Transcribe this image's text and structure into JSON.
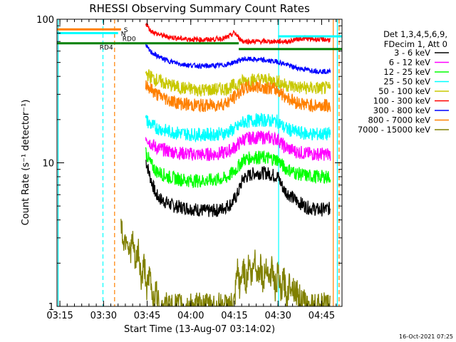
{
  "chart_data": {
    "type": "line",
    "title": "RHESSI Observing Summary Count Rates",
    "xlabel": "Start Time (13-Aug-07 03:14:02)",
    "ylabel": "Count Rate (s⁻¹ detector⁻¹)",
    "y_scale": "log",
    "ylim": [
      1,
      100
    ],
    "xlim_minutes": [
      194,
      292
    ],
    "x_ticks": [
      {
        "min": 195,
        "label": "03:15"
      },
      {
        "min": 210,
        "label": "03:30"
      },
      {
        "min": 225,
        "label": "03:45"
      },
      {
        "min": 240,
        "label": "04:00"
      },
      {
        "min": 255,
        "label": "04:15"
      },
      {
        "min": 270,
        "label": "04:30"
      },
      {
        "min": 285,
        "label": "04:45"
      }
    ],
    "y_ticks": [
      {
        "v": 1,
        "label": "1"
      },
      {
        "v": 10,
        "label": "10"
      },
      {
        "v": 100,
        "label": "100"
      }
    ],
    "legend_title": [
      "Det 1,3,4,5,6,9,",
      "FDecim 1, Att 0"
    ],
    "series": [
      {
        "name": "3 - 6 keV",
        "color": "#000000",
        "points": [
          [
            224.5,
            10.5
          ],
          [
            226,
            8.0
          ],
          [
            228,
            6.0
          ],
          [
            230,
            5.5
          ],
          [
            234,
            5.0
          ],
          [
            240,
            4.8
          ],
          [
            246,
            4.6
          ],
          [
            250,
            4.7
          ],
          [
            254,
            5.2
          ],
          [
            256,
            6.0
          ],
          [
            258,
            7.8
          ],
          [
            262,
            8.5
          ],
          [
            266,
            8.5
          ],
          [
            270,
            8.0
          ],
          [
            272,
            6.5
          ],
          [
            276,
            5.5
          ],
          [
            280,
            4.9
          ],
          [
            284,
            4.7
          ],
          [
            288,
            4.8
          ]
        ]
      },
      {
        "name": "6 - 12 keV",
        "color": "#ff00ff",
        "points": [
          [
            224.5,
            15.5
          ],
          [
            226,
            13.8
          ],
          [
            228,
            12.8
          ],
          [
            232,
            12.1
          ],
          [
            236,
            11.7
          ],
          [
            240,
            11.5
          ],
          [
            244,
            11.4
          ],
          [
            248,
            11.5
          ],
          [
            252,
            11.8
          ],
          [
            254,
            12.4
          ],
          [
            256,
            13.2
          ],
          [
            258,
            14.6
          ],
          [
            262,
            15.0
          ],
          [
            266,
            15.0
          ],
          [
            270,
            14.6
          ],
          [
            272,
            13.0
          ],
          [
            276,
            12.0
          ],
          [
            280,
            11.6
          ],
          [
            284,
            11.5
          ],
          [
            288,
            11.5
          ]
        ]
      },
      {
        "name": "12 - 25 keV",
        "color": "#00ff00",
        "points": [
          [
            224.5,
            12.0
          ],
          [
            226,
            10.0
          ],
          [
            228,
            8.8
          ],
          [
            232,
            8.0
          ],
          [
            236,
            7.7
          ],
          [
            240,
            7.5
          ],
          [
            244,
            7.5
          ],
          [
            248,
            7.6
          ],
          [
            252,
            7.8
          ],
          [
            254,
            8.4
          ],
          [
            256,
            9.2
          ],
          [
            258,
            10.5
          ],
          [
            262,
            11.0
          ],
          [
            266,
            10.8
          ],
          [
            270,
            10.5
          ],
          [
            272,
            9.3
          ],
          [
            276,
            8.5
          ],
          [
            280,
            8.1
          ],
          [
            284,
            8.0
          ],
          [
            288,
            8.0
          ]
        ]
      },
      {
        "name": "25 - 50 keV",
        "color": "#00ffff",
        "points": [
          [
            224.5,
            20.0
          ],
          [
            226,
            18.6
          ],
          [
            228,
            17.6
          ],
          [
            232,
            16.6
          ],
          [
            236,
            16.1
          ],
          [
            240,
            15.8
          ],
          [
            244,
            15.7
          ],
          [
            248,
            15.8
          ],
          [
            252,
            16.1
          ],
          [
            254,
            16.8
          ],
          [
            256,
            17.6
          ],
          [
            258,
            19.2
          ],
          [
            262,
            19.8
          ],
          [
            266,
            19.8
          ],
          [
            270,
            19.4
          ],
          [
            272,
            17.6
          ],
          [
            276,
            16.4
          ],
          [
            280,
            15.9
          ],
          [
            284,
            15.8
          ],
          [
            288,
            15.8
          ]
        ]
      },
      {
        "name": "50 - 100 keV",
        "color": "#c8c800",
        "points": [
          [
            224.5,
            42.0
          ],
          [
            226,
            40.0
          ],
          [
            228,
            38.0
          ],
          [
            232,
            35.2
          ],
          [
            236,
            33.4
          ],
          [
            240,
            32.6
          ],
          [
            244,
            32.2
          ],
          [
            248,
            32.3
          ],
          [
            252,
            32.9
          ],
          [
            254,
            34.0
          ],
          [
            256,
            35.2
          ],
          [
            258,
            37.2
          ],
          [
            262,
            38.0
          ],
          [
            266,
            37.8
          ],
          [
            270,
            37.0
          ],
          [
            272,
            35.0
          ],
          [
            276,
            33.8
          ],
          [
            280,
            33.2
          ],
          [
            284,
            33.0
          ],
          [
            288,
            33.0
          ]
        ]
      },
      {
        "name": "100 - 300 keV",
        "color": "#ff0000",
        "points": [
          [
            224.5,
            94.0
          ],
          [
            226,
            84.0
          ],
          [
            228,
            79.5
          ],
          [
            232,
            75.5
          ],
          [
            236,
            73.5
          ],
          [
            240,
            72.5
          ],
          [
            244,
            72.0
          ],
          [
            248,
            72.5
          ],
          [
            252,
            74.0
          ],
          [
            254,
            77.5
          ],
          [
            255,
            81.0
          ],
          [
            256,
            76.0
          ],
          [
            258,
            70.0
          ],
          [
            262,
            70.0
          ],
          [
            266,
            70.0
          ],
          [
            270,
            70.0
          ],
          [
            272,
            70.0
          ],
          [
            274,
            70.0
          ],
          [
            276,
            72.5
          ],
          [
            278,
            73.5
          ],
          [
            280,
            73.0
          ],
          [
            284,
            72.5
          ],
          [
            288,
            72.0
          ]
        ]
      },
      {
        "name": "300 - 800 keV",
        "color": "#0000ff",
        "points": [
          [
            224.5,
            65.0
          ],
          [
            226,
            60.0
          ],
          [
            228,
            56.0
          ],
          [
            232,
            51.5
          ],
          [
            236,
            49.0
          ],
          [
            240,
            47.7
          ],
          [
            244,
            47.2
          ],
          [
            248,
            47.4
          ],
          [
            252,
            48.2
          ],
          [
            254,
            49.6
          ],
          [
            256,
            51.0
          ],
          [
            258,
            52.8
          ],
          [
            262,
            52.5
          ],
          [
            266,
            51.5
          ],
          [
            270,
            50.5
          ],
          [
            272,
            49.0
          ],
          [
            276,
            46.0
          ],
          [
            280,
            44.5
          ],
          [
            284,
            43.5
          ],
          [
            288,
            43.0
          ]
        ]
      },
      {
        "name": "800 - 7000 keV",
        "color": "#ff8000",
        "points": [
          [
            224.5,
            36.0
          ],
          [
            226,
            33.0
          ],
          [
            228,
            30.2
          ],
          [
            232,
            27.6
          ],
          [
            236,
            26.0
          ],
          [
            240,
            25.3
          ],
          [
            244,
            25.0
          ],
          [
            248,
            25.2
          ],
          [
            252,
            26.0
          ],
          [
            254,
            27.5
          ],
          [
            256,
            30.0
          ],
          [
            258,
            32.8
          ],
          [
            262,
            34.0
          ],
          [
            266,
            33.6
          ],
          [
            270,
            32.0
          ],
          [
            272,
            29.5
          ],
          [
            276,
            26.5
          ],
          [
            280,
            25.3
          ],
          [
            284,
            25.0
          ],
          [
            288,
            25.0
          ]
        ]
      },
      {
        "name": "7000 - 15000 keV",
        "color": "#808000",
        "points": [
          [
            216,
            3.7
          ],
          [
            217,
            2.8
          ],
          [
            218,
            3.2
          ],
          [
            219,
            2.3
          ],
          [
            220,
            2.9
          ],
          [
            221,
            1.9
          ],
          [
            222,
            2.5
          ],
          [
            223,
            1.5
          ],
          [
            224,
            2.0
          ],
          [
            225,
            1.3
          ],
          [
            226,
            1.7
          ],
          [
            227,
            1.1
          ],
          [
            228,
            1.3
          ],
          [
            229,
            1.0
          ],
          [
            230,
            1.0
          ],
          [
            250,
            1.0
          ],
          [
            255,
            1.0
          ],
          [
            256,
            1.8
          ],
          [
            257,
            1.3
          ],
          [
            258,
            2.0
          ],
          [
            259,
            1.4
          ],
          [
            260,
            2.1
          ],
          [
            261,
            1.5
          ],
          [
            262,
            2.3
          ],
          [
            263,
            1.6
          ],
          [
            264,
            2.0
          ],
          [
            265,
            1.4
          ],
          [
            266,
            2.1
          ],
          [
            267,
            1.5
          ],
          [
            268,
            1.9
          ],
          [
            269,
            1.3
          ],
          [
            270,
            1.7
          ],
          [
            271,
            1.2
          ],
          [
            272,
            1.6
          ],
          [
            273,
            1.1
          ],
          [
            274,
            1.5
          ],
          [
            276,
            1.3
          ],
          [
            278,
            1.1
          ],
          [
            280,
            1.0
          ],
          [
            288,
            1.0
          ]
        ]
      }
    ],
    "flags": [
      {
        "label": "S",
        "color": "#ff8000",
        "x": [
          194,
          216
        ],
        "y": 85
      },
      {
        "label": "N",
        "color": "#00ffff",
        "x": [
          194,
          215
        ],
        "y": 80
      },
      {
        "label": "N",
        "color": "#00ffff",
        "x": [
          270,
          292
        ],
        "y": 76
      },
      {
        "label": "RD4",
        "color": "#008000",
        "x": [
          194,
          216
        ],
        "y": 68
      },
      {
        "label": "RD0",
        "color": "#008000",
        "x": [
          216,
          256.5
        ],
        "y": 68
      },
      {
        "label": "",
        "color": "#008000",
        "x": [
          256.5,
          292
        ],
        "y": 62
      }
    ],
    "vlines": [
      {
        "x": 194.4,
        "color": "#00ffff",
        "dash": false
      },
      {
        "x": 209.8,
        "color": "#00ffff",
        "dash": true
      },
      {
        "x": 213.8,
        "color": "#ff8000",
        "dash": true
      },
      {
        "x": 270.2,
        "color": "#00ffff",
        "dash": false
      },
      {
        "x": 289.0,
        "color": "#ff8000",
        "dash": false
      },
      {
        "x": 290.4,
        "color": "#00ffff",
        "dash": false
      },
      {
        "x": 291.0,
        "color": "#ff8000",
        "dash": true
      }
    ],
    "stamp": "16-Oct-2021 07:25"
  }
}
